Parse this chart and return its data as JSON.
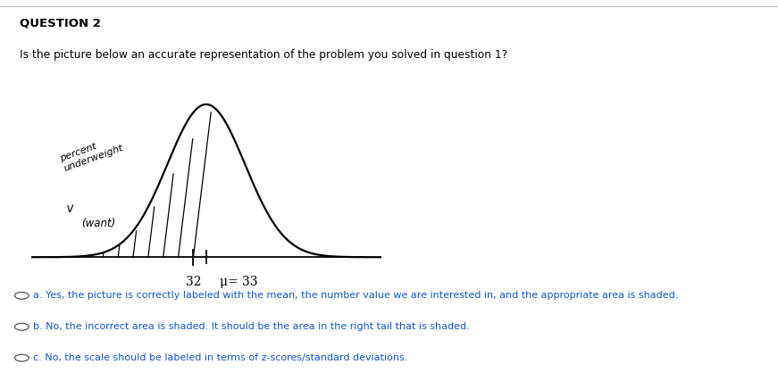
{
  "title": "QUESTION 2",
  "question_text": "Is the picture below an accurate representation of the problem you solved in question 1?",
  "bg_color": "#ffffff",
  "answer_a": "a. Yes, the picture is correctly labeled with the mean, the number value we are interested in, and the appropriate area is shaded.",
  "answer_b": "b. No, the incorrect area is shaded. It should be the area in the right tail that is shaded.",
  "answer_c": "c. No, the scale should be labeled in terms of z-scores/standard deviations.",
  "answer_color_a": "#1155cc",
  "answer_color_b": "#1155cc",
  "answer_color_c": "#1155cc",
  "label_32": "32",
  "label_mu": "μ= 33",
  "curve_mean": 0,
  "curve_std": 1,
  "shaded_up_to": -0.33
}
